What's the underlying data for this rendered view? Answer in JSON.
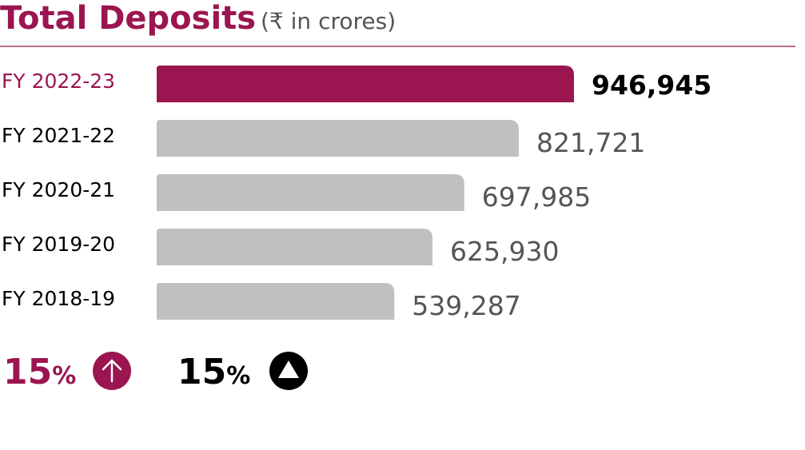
{
  "chart_data": {
    "type": "bar",
    "orientation": "horizontal",
    "title": "Total Deposits",
    "subtitle": "(₹ in crores)",
    "categories": [
      "FY 2022-23",
      "FY 2021-22",
      "FY 2020-21",
      "FY 2019-20",
      "FY 2018-19"
    ],
    "values": [
      946945,
      821721,
      697985,
      625930,
      539287
    ],
    "value_labels": [
      "946,945",
      "821,721",
      "697,985",
      "625,930",
      "539,287"
    ],
    "colors": [
      "#9b1550",
      "#bfc0c2",
      "#bfc0c2",
      "#bfc0c2",
      "#bfc0c2"
    ],
    "annotations": [
      {
        "text": "15",
        "unit": "%",
        "color": "#9b1550"
      },
      {
        "text": "15",
        "unit": "%",
        "color": "#000000"
      }
    ]
  }
}
